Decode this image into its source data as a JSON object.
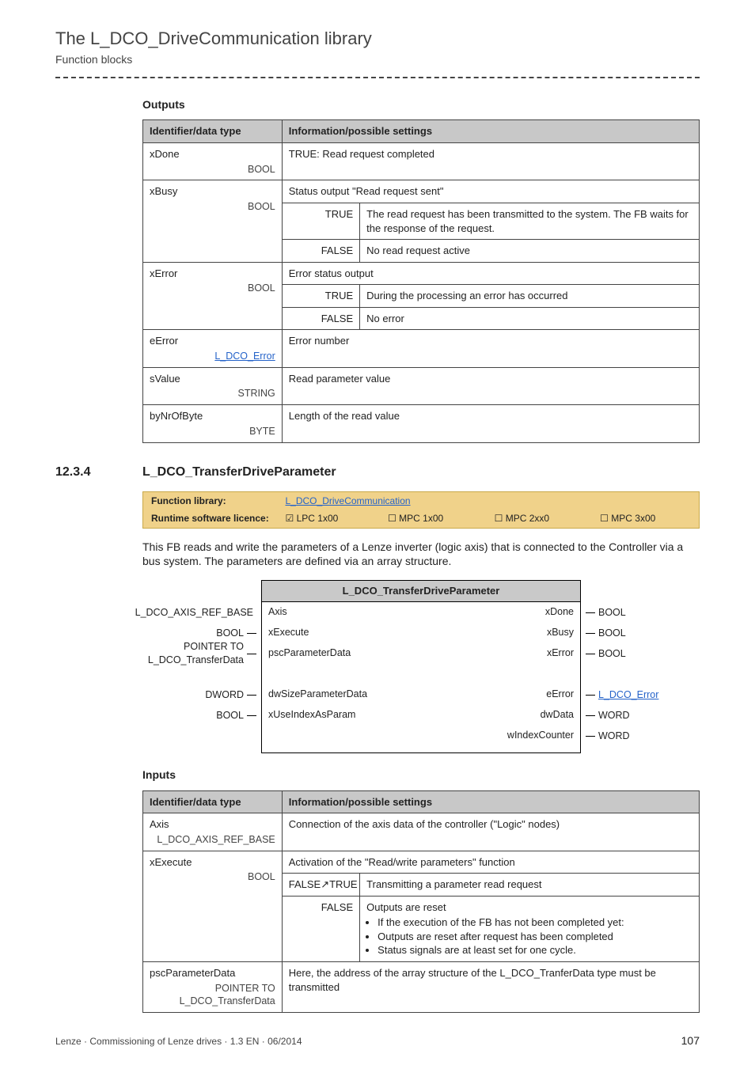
{
  "runhead": {
    "title": "The L_DCO_DriveCommunication library",
    "subtitle": "Function blocks"
  },
  "outputs_section_title": "Outputs",
  "inputs_section_title": "Inputs",
  "io_headers": {
    "id": "Identifier/data type",
    "info": "Information/possible settings"
  },
  "kv": {
    "true": "TRUE",
    "false": "FALSE",
    "false_true": "FALSE↗TRUE"
  },
  "outputs": {
    "xDone": {
      "name": "xDone",
      "type": "BOOL",
      "plain": "TRUE: Read request completed"
    },
    "xBusy": {
      "name": "xBusy",
      "type": "BOOL",
      "plain": "Status output \"Read request sent\"",
      "true": "The read request has been transmitted to the system. The FB waits for the response of the request.",
      "false": "No read request active"
    },
    "xError": {
      "name": "xError",
      "type": "BOOL",
      "plain": "Error status output",
      "true": "During the processing an error has occurred",
      "false": "No error"
    },
    "eError": {
      "name": "eError",
      "type_link": "L_DCO_Error",
      "plain": "Error number"
    },
    "sValue": {
      "name": "sValue",
      "type": "STRING",
      "plain": "Read parameter value"
    },
    "byNrOfByte": {
      "name": "byNrOfByte",
      "type": "BYTE",
      "plain": "Length of the read value"
    }
  },
  "h3": {
    "num": "12.3.4",
    "title": "L_DCO_TransferDriveParameter"
  },
  "fnstrip": {
    "lib_label": "Function library:",
    "lib_link": "L_DCO_DriveCommunication",
    "lic_label": "Runtime software licence:",
    "lic_cells": [
      "☑ LPC 1x00",
      "☐ MPC 1x00",
      "☐ MPC 2xx0",
      "☐ MPC 3x00"
    ]
  },
  "lead": "This FB reads and write the parameters of a Lenze inverter (logic axis) that is connected to the Controller via a bus system. The parameters are defined via an array structure.",
  "fb": {
    "title": "L_DCO_TransferDriveParameter",
    "left": [
      "Axis",
      "xExecute",
      "pscParameterData",
      "dwSizeParameterData",
      "xUseIndexAsParam"
    ],
    "right": [
      "xDone",
      "xBusy",
      "xError",
      "eError",
      "dwData",
      "wIndexCounter"
    ],
    "left_types": [
      "L_DCO_AXIS_REF_BASE",
      "BOOL",
      "POINTER TO\nL_DCO_TransferData",
      "DWORD",
      "BOOL"
    ],
    "right_types": [
      "BOOL",
      "BOOL",
      "BOOL",
      "L_DCO_Error",
      "WORD",
      "WORD"
    ],
    "right_is_link": [
      false,
      false,
      false,
      true,
      false,
      false
    ]
  },
  "inputs": {
    "Axis": {
      "name": "Axis",
      "type": "L_DCO_AXIS_REF_BASE",
      "plain": "Connection of the axis data of the controller (\"Logic\" nodes)"
    },
    "xExecute": {
      "name": "xExecute",
      "type": "BOOL",
      "plain": "Activation of the \"Read/write parameters\" function",
      "ft": "Transmitting a parameter read request",
      "false_lead": "Outputs are reset",
      "false_bullets": [
        "If the execution of the FB has not been completed yet:",
        "Outputs are reset after request has been completed",
        "Status signals are at least set for one cycle."
      ]
    },
    "pscParameterData": {
      "name": "pscParameterData",
      "type_multiline": "POINTER TO\nL_DCO_TransferData",
      "plain": "Here, the address of the array structure of the L_DCO_TranferData type must be transmitted"
    }
  },
  "footer": {
    "left": "Lenze · Commissioning of Lenze drives · 1.3 EN · 06/2014",
    "page": "107"
  }
}
